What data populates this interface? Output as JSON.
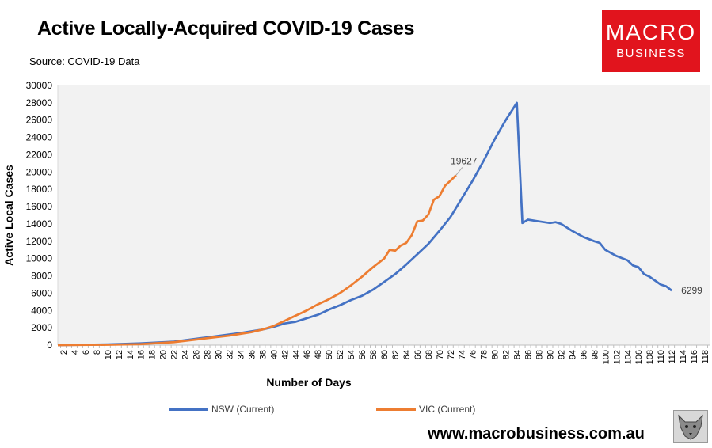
{
  "header": {
    "title": "Active Locally-Acquired COVID-19 Cases",
    "source": "Source: COVID-19 Data"
  },
  "logo": {
    "line1": "MACRO",
    "line2": "BUSINESS"
  },
  "footer": {
    "website": "www.macrobusiness.com.au"
  },
  "colors": {
    "nsw": "#4472c4",
    "vic": "#ed7d31",
    "plot_bg": "#f2f2f2",
    "logo_bg": "#e1141d"
  },
  "chart_data": {
    "type": "line",
    "xlabel": "Number of Days",
    "ylabel": "Active Local Cases",
    "xlim": [
      1,
      119
    ],
    "ylim": [
      0,
      30000
    ],
    "y_ticks": [
      0,
      2000,
      4000,
      6000,
      8000,
      10000,
      12000,
      14000,
      16000,
      18000,
      20000,
      22000,
      24000,
      26000,
      28000,
      30000
    ],
    "x_ticks": [
      2,
      4,
      6,
      8,
      10,
      12,
      14,
      16,
      18,
      20,
      22,
      24,
      26,
      28,
      30,
      32,
      34,
      36,
      38,
      40,
      42,
      44,
      46,
      48,
      50,
      52,
      54,
      56,
      58,
      60,
      62,
      64,
      66,
      68,
      70,
      72,
      74,
      76,
      78,
      80,
      82,
      84,
      86,
      88,
      90,
      92,
      94,
      96,
      98,
      100,
      102,
      104,
      106,
      108,
      110,
      112,
      114,
      116,
      118
    ],
    "grid": false,
    "legend_position": "bottom",
    "series": [
      {
        "name": "NSW (Current)",
        "color": "#4472c4",
        "x": [
          1,
          10,
          16,
          22,
          28,
          34,
          38,
          40,
          42,
          44,
          46,
          48,
          50,
          52,
          54,
          56,
          58,
          60,
          62,
          64,
          66,
          68,
          70,
          72,
          74,
          76,
          78,
          80,
          82,
          84,
          85,
          86,
          88,
          90,
          91,
          92,
          94,
          96,
          98,
          99,
          100,
          102,
          104,
          105,
          106,
          107,
          108,
          110,
          111,
          112
        ],
        "y": [
          0,
          80,
          200,
          400,
          900,
          1400,
          1800,
          2100,
          2500,
          2700,
          3100,
          3500,
          4100,
          4600,
          5200,
          5700,
          6400,
          7300,
          8200,
          9300,
          10500,
          11700,
          13200,
          14800,
          16900,
          19000,
          21300,
          23800,
          26000,
          28000,
          14100,
          14500,
          14300,
          14100,
          14200,
          14000,
          13200,
          12500,
          12000,
          11800,
          11000,
          10300,
          9800,
          9200,
          9000,
          8200,
          7900,
          7000,
          6800,
          6299
        ]
      },
      {
        "name": "VIC (Current)",
        "color": "#ed7d31",
        "x": [
          1,
          10,
          16,
          22,
          28,
          32,
          36,
          38,
          40,
          42,
          44,
          46,
          48,
          50,
          52,
          54,
          56,
          58,
          60,
          61,
          62,
          63,
          64,
          65,
          66,
          67,
          68,
          69,
          70,
          71,
          72,
          73
        ],
        "y": [
          0,
          50,
          120,
          350,
          800,
          1100,
          1500,
          1800,
          2200,
          2800,
          3400,
          4000,
          4700,
          5300,
          6000,
          6900,
          7900,
          9000,
          10000,
          11000,
          10900,
          11500,
          11800,
          12700,
          14300,
          14400,
          15100,
          16800,
          17200,
          18400,
          19000,
          19627
        ]
      }
    ],
    "annotations": [
      {
        "series": "VIC (Current)",
        "text": "19627"
      },
      {
        "series": "NSW (Current)",
        "text": "6299"
      }
    ]
  }
}
